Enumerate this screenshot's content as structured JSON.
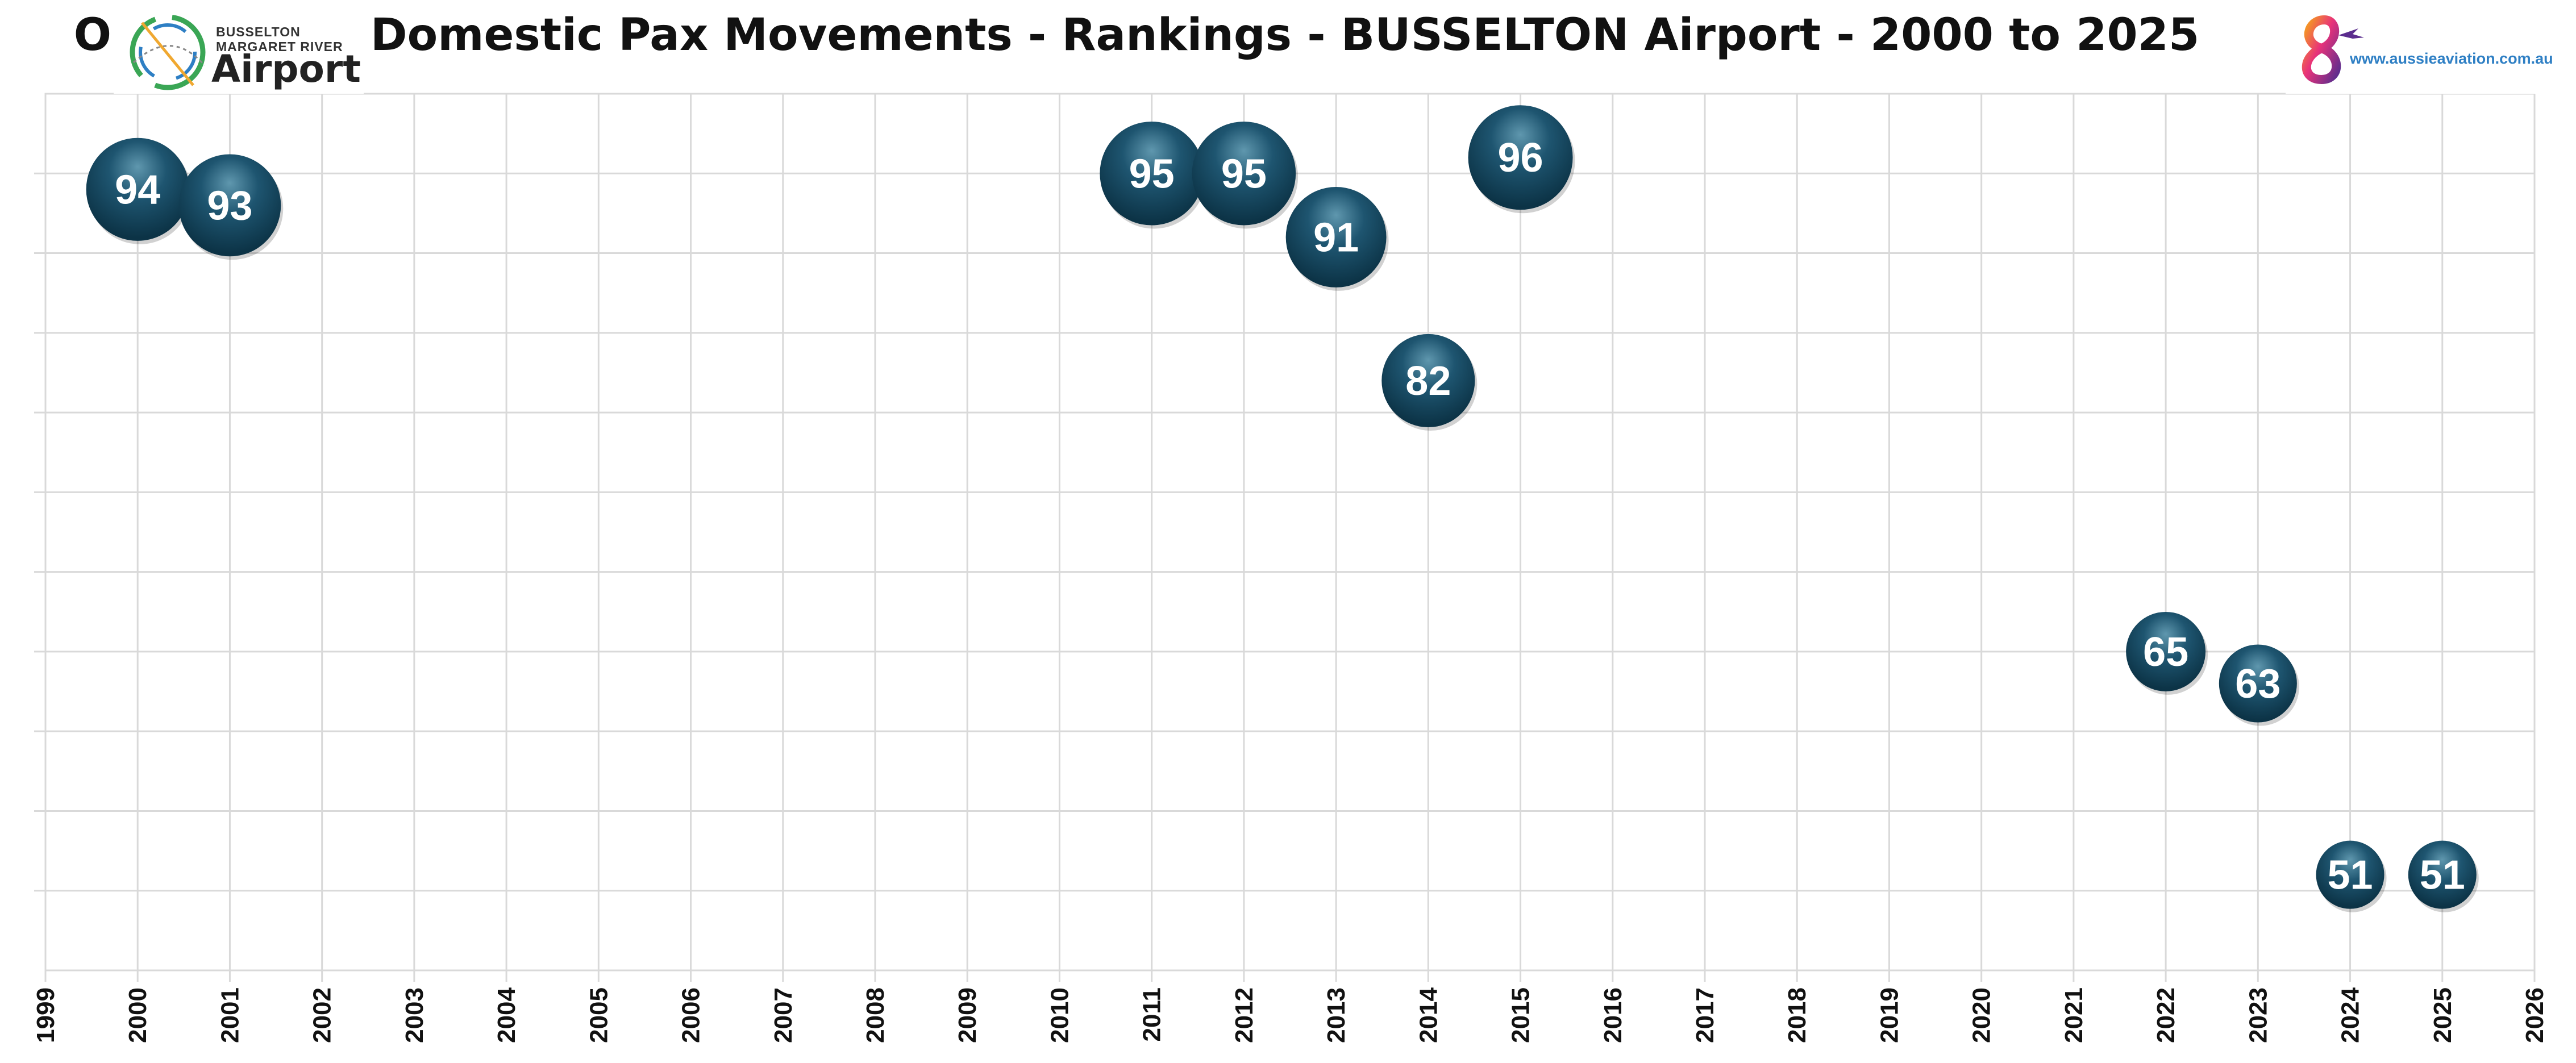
{
  "title": "Outbound - Domestic Pax Movements - Rankings - BUSSELTON Airport - 2000 to 2025",
  "logo_left": {
    "line1": "BUSSELTON",
    "line2": "MARGARET RIVER",
    "line3": "Airport"
  },
  "logo_right": {
    "website": "www.aussieaviation.com.au"
  },
  "colors": {
    "bubble_dark": "#0c3346",
    "bubble_light": "#5f97ae",
    "grid": "#d9d9d9",
    "site_text": "#2e7fc4"
  },
  "chart_data": {
    "type": "scatter",
    "title": "Outbound - Domestic Pax Movements - Rankings - BUSSELTON Airport - 2000 to 2025",
    "xlabel": "",
    "ylabel": "",
    "xlim": [
      1999,
      2026
    ],
    "ylim": [
      45,
      100
    ],
    "grid": true,
    "x_ticks": [
      1999,
      2000,
      2001,
      2002,
      2003,
      2004,
      2005,
      2006,
      2007,
      2008,
      2009,
      2010,
      2011,
      2012,
      2013,
      2014,
      2015,
      2016,
      2017,
      2018,
      2019,
      2020,
      2021,
      2022,
      2023,
      2024,
      2025,
      2026
    ],
    "points": [
      {
        "x": 2000,
        "y": 94,
        "label": "94"
      },
      {
        "x": 2001,
        "y": 93,
        "label": "93"
      },
      {
        "x": 2011,
        "y": 95,
        "label": "95"
      },
      {
        "x": 2012,
        "y": 95,
        "label": "95"
      },
      {
        "x": 2013,
        "y": 91,
        "label": "91"
      },
      {
        "x": 2014,
        "y": 82,
        "label": "82"
      },
      {
        "x": 2015,
        "y": 96,
        "label": "96"
      },
      {
        "x": 2022,
        "y": 65,
        "label": "65"
      },
      {
        "x": 2023,
        "y": 63,
        "label": "63"
      },
      {
        "x": 2024,
        "y": 51,
        "label": "51"
      },
      {
        "x": 2025,
        "y": 51,
        "label": "51"
      }
    ]
  }
}
